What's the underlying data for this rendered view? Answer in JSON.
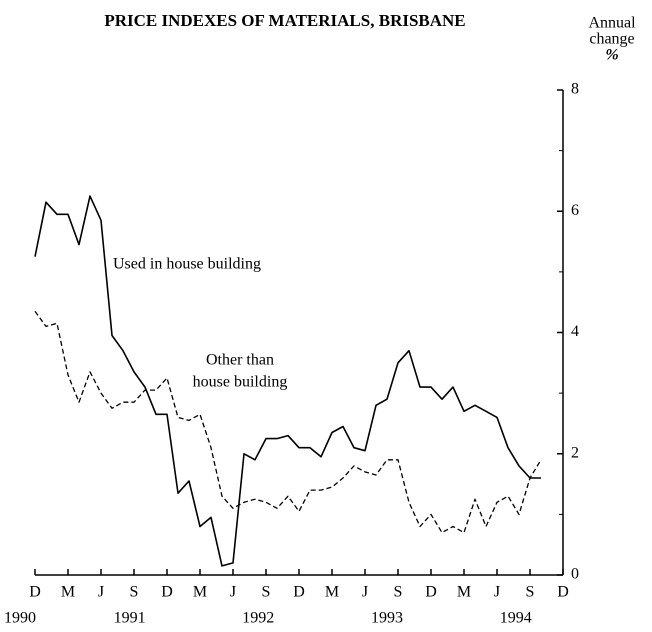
{
  "chart_data": {
    "type": "line",
    "title": "PRICE INDEXES OF MATERIALS, BRISBANE",
    "y_label": [
      "Annual",
      "change",
      "%"
    ],
    "categories": [
      "D",
      null,
      null,
      "M",
      null,
      null,
      "J",
      null,
      null,
      "S",
      null,
      null,
      "D",
      null,
      null,
      "M",
      null,
      null,
      "J",
      null,
      null,
      "S",
      null,
      null,
      "D",
      null,
      null,
      "M",
      null,
      null,
      "J",
      null,
      null,
      "S",
      null,
      null,
      "D",
      null,
      null,
      "M",
      null,
      null,
      "J",
      null,
      null,
      "S",
      null,
      null,
      "D"
    ],
    "years": [
      "1990",
      "1991",
      "1992",
      "1993",
      "1994"
    ],
    "series": [
      {
        "name": "Used in house building",
        "color": "#000000",
        "dash": false,
        "values": [
          5.25,
          6.15,
          5.95,
          5.95,
          5.45,
          6.25,
          5.85,
          3.95,
          3.7,
          3.35,
          3.1,
          2.65,
          2.65,
          1.35,
          1.55,
          0.8,
          0.95,
          0.15,
          0.2,
          2.0,
          1.9,
          2.25,
          2.25,
          2.3,
          2.1,
          2.1,
          1.95,
          2.35,
          2.45,
          2.1,
          2.05,
          2.8,
          2.9,
          3.5,
          3.7,
          3.1,
          3.1,
          2.9,
          3.1,
          2.7,
          2.8,
          2.7,
          2.6,
          2.1,
          1.8,
          1.6,
          1.6,
          null,
          null
        ]
      },
      {
        "name": [
          "Other than",
          "house building"
        ],
        "color": "#000000",
        "dash": true,
        "values": [
          4.35,
          4.1,
          4.15,
          3.3,
          2.85,
          3.35,
          3.0,
          2.75,
          2.85,
          2.85,
          3.05,
          3.05,
          3.25,
          2.6,
          2.55,
          2.65,
          2.1,
          1.3,
          1.1,
          1.2,
          1.25,
          1.2,
          1.1,
          1.3,
          1.05,
          1.4,
          1.4,
          1.45,
          1.6,
          1.8,
          1.7,
          1.65,
          1.9,
          1.9,
          1.2,
          0.8,
          1.0,
          0.7,
          0.8,
          0.7,
          1.25,
          0.8,
          1.2,
          1.3,
          1.0,
          1.6,
          1.9,
          null,
          null
        ]
      }
    ],
    "ylim": [
      0,
      8
    ],
    "yticks": [
      0,
      2,
      4,
      6,
      8
    ],
    "yminor": [
      1,
      3,
      5,
      7
    ]
  }
}
